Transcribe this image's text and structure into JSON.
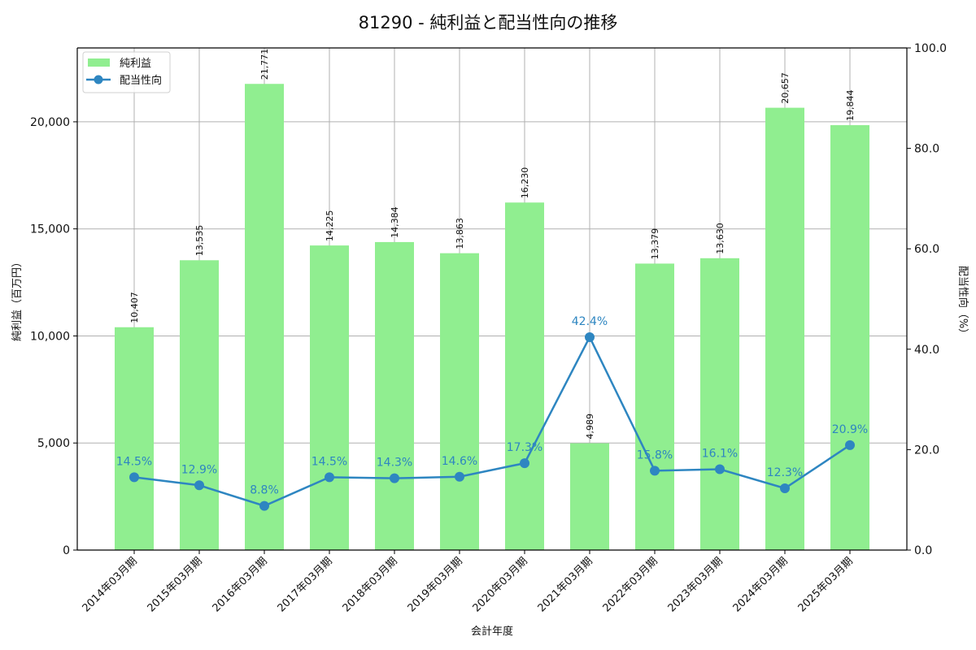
{
  "chart_data": {
    "type": "bar+line",
    "title": "81290 - 純利益と配当性向の推移",
    "xlabel": "会計年度",
    "ylabel_left": "純利益（百万円）",
    "ylabel_right": "配当性向（%）",
    "categories": [
      "2014年03月期",
      "2015年03月期",
      "2016年03月期",
      "2017年03月期",
      "2018年03月期",
      "2019年03月期",
      "2020年03月期",
      "2021年03月期",
      "2022年03月期",
      "2023年03月期",
      "2024年03月期",
      "2025年03月期"
    ],
    "series": [
      {
        "name": "純利益",
        "type": "bar",
        "axis": "left",
        "color": "#90ee90",
        "values": [
          10407,
          13535,
          21771,
          14225,
          14384,
          13863,
          16230,
          4989,
          13379,
          13630,
          20657,
          19844
        ],
        "labels": [
          "10,407",
          "13,535",
          "21,771",
          "14,225",
          "14,384",
          "13,863",
          "16,230",
          "4,989",
          "13,379",
          "13,630",
          "20,657",
          "19,844"
        ]
      },
      {
        "name": "配当性向",
        "type": "line",
        "axis": "right",
        "color": "#2e86c1",
        "values": [
          14.5,
          12.9,
          8.8,
          14.5,
          14.3,
          14.6,
          17.3,
          42.4,
          15.8,
          16.1,
          12.3,
          20.9
        ],
        "labels": [
          "14.5%",
          "12.9%",
          "8.8%",
          "14.5%",
          "14.3%",
          "14.6%",
          "17.3%",
          "42.4%",
          "15.8%",
          "16.1%",
          "12.3%",
          "20.9%"
        ]
      }
    ],
    "ylim_left": [
      0,
      23450
    ],
    "yticks_left": [
      "0",
      "5,000",
      "10,000",
      "15,000",
      "20,000"
    ],
    "ylim_right": [
      0,
      100
    ],
    "yticks_right": [
      "0.0",
      "20.0",
      "40.0",
      "60.0",
      "80.0",
      "100.0"
    ],
    "grid": true,
    "legend_position": "upper left"
  }
}
